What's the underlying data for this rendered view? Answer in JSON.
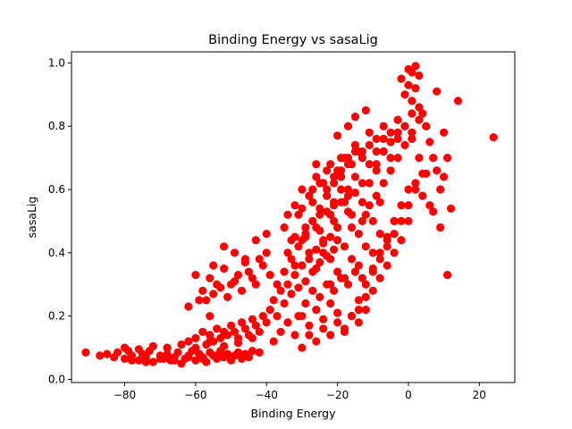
{
  "chart_data": {
    "type": "scatter",
    "title": "Binding Energy vs sasaLig",
    "xlabel": "Binding Energy",
    "ylabel": "sasaLig",
    "xlim": [
      -95,
      30
    ],
    "ylim": [
      -0.01,
      1.035
    ],
    "xticks": [
      -80,
      -60,
      -40,
      -20,
      0,
      20
    ],
    "yticks": [
      0.0,
      0.2,
      0.4,
      0.6,
      0.8,
      1.0
    ],
    "xtick_labels": [
      "−80",
      "−60",
      "−40",
      "−20",
      "0",
      "20"
    ],
    "ytick_labels": [
      "0.0",
      "0.2",
      "0.4",
      "0.6",
      "0.8",
      "1.0"
    ],
    "grid": false,
    "marker_color": "#ff0000",
    "series": [
      {
        "x": [
          -91,
          -87,
          -85,
          -83,
          -82,
          -80,
          -79,
          -78,
          -76,
          -75,
          -74,
          -73,
          -72,
          -70,
          -69,
          -68,
          -67,
          -66,
          -65,
          -64,
          -63,
          -62,
          -61,
          -60,
          -59,
          -58,
          -57,
          -56,
          -55,
          -54,
          -53,
          -52,
          -51,
          -50,
          -49,
          -48,
          -47,
          -46,
          -45,
          -44,
          -80,
          -76,
          -72,
          -68,
          -64,
          -60,
          -56,
          -52,
          -48,
          -44,
          -78,
          -74,
          -70,
          -66,
          -62,
          -58,
          -54,
          -50,
          -46,
          -42,
          -62,
          -60,
          -58,
          -57,
          -56,
          -55,
          -54,
          -53,
          -52,
          -51,
          -50,
          -49,
          -48,
          -47,
          -46,
          -45,
          -44,
          -43,
          -42,
          -41,
          -58,
          -56,
          -54,
          -52,
          -50,
          -48,
          -46,
          -44,
          -42,
          -40,
          -57,
          -55,
          -53,
          -51,
          -49,
          -47,
          -45,
          -43,
          -41,
          -39,
          -62,
          -60,
          -55,
          -52,
          -49,
          -46,
          -43,
          -40,
          -59,
          -56,
          -40,
          -39,
          -38,
          -37,
          -36,
          -35,
          -34,
          -33,
          -32,
          -31,
          -30,
          -29,
          -28,
          -27,
          -26,
          -25,
          -24,
          -23,
          -22,
          -21,
          -38,
          -36,
          -34,
          -32,
          -30,
          -28,
          -26,
          -24,
          -22,
          -20,
          -37,
          -35,
          -33,
          -31,
          -29,
          -27,
          -25,
          -23,
          -21,
          -19,
          -35,
          -33,
          -31,
          -29,
          -27,
          -25,
          -23,
          -21,
          -19,
          -17,
          -34,
          -32,
          -30,
          -28,
          -26,
          -24,
          -22,
          -20,
          -18,
          -16,
          -32,
          -30,
          -28,
          -26,
          -24,
          -22,
          -20,
          -18,
          -16,
          -14,
          -31,
          -29,
          -27,
          -25,
          -23,
          -21,
          -19,
          -17,
          -15,
          -13,
          -30,
          -28,
          -26,
          -24,
          -22,
          -20,
          -18,
          -16,
          -14,
          -12,
          -29,
          -27,
          -25,
          -23,
          -21,
          -19,
          -17,
          -15,
          -13,
          -11,
          -26,
          -24,
          -22,
          -20,
          -18,
          -16,
          -14,
          -12,
          -10,
          -8,
          -25,
          -23,
          -21,
          -19,
          -17,
          -15,
          -13,
          -11,
          -9,
          -7,
          -22,
          -20,
          -18,
          -16,
          -14,
          -12,
          -10,
          -8,
          -6,
          -4,
          -21,
          -19,
          -17,
          -15,
          -13,
          -11,
          -9,
          -7,
          -5,
          -3,
          -18,
          -16,
          -14,
          -12,
          -10,
          -8,
          -6,
          -4,
          -2,
          0,
          -17,
          -15,
          -13,
          -11,
          -9,
          -7,
          -5,
          -3,
          -1,
          1,
          -14,
          -12,
          -10,
          -8,
          -6,
          -4,
          -2,
          0,
          2,
          4,
          -13,
          -11,
          -9,
          -7,
          -5,
          -3,
          -1,
          1,
          3,
          5,
          -10,
          -8,
          -6,
          -4,
          -2,
          0,
          2,
          4,
          6,
          -9,
          -7,
          -5,
          -3,
          -1,
          1,
          3,
          5,
          -2,
          0,
          1,
          2,
          3,
          -1,
          0,
          1,
          2,
          3,
          4,
          5,
          6,
          7,
          8,
          9,
          -32,
          -34,
          -30,
          -26,
          -27,
          -24,
          -20,
          -15,
          -17,
          -12,
          11,
          12,
          14,
          24,
          10,
          8,
          10,
          11,
          9,
          7
        ],
        "y": [
          0.085,
          0.075,
          0.08,
          0.07,
          0.085,
          0.065,
          0.09,
          0.075,
          0.06,
          0.08,
          0.07,
          0.09,
          0.055,
          0.075,
          0.065,
          0.08,
          0.06,
          0.07,
          0.085,
          0.05,
          0.065,
          0.075,
          0.09,
          0.06,
          0.08,
          0.07,
          0.055,
          0.085,
          0.075,
          0.065,
          0.09,
          0.07,
          0.08,
          0.06,
          0.075,
          0.085,
          0.065,
          0.08,
          0.07,
          0.09,
          0.1,
          0.095,
          0.105,
          0.1,
          0.11,
          0.1,
          0.12,
          0.105,
          0.115,
          0.13,
          0.06,
          0.055,
          0.065,
          0.06,
          0.07,
          0.065,
          0.075,
          0.07,
          0.08,
          0.085,
          0.12,
          0.13,
          0.15,
          0.11,
          0.14,
          0.12,
          0.16,
          0.13,
          0.15,
          0.14,
          0.17,
          0.15,
          0.13,
          0.18,
          0.16,
          0.14,
          0.19,
          0.17,
          0.15,
          0.2,
          0.28,
          0.32,
          0.3,
          0.35,
          0.3,
          0.33,
          0.37,
          0.32,
          0.38,
          0.4,
          0.25,
          0.27,
          0.29,
          0.26,
          0.31,
          0.28,
          0.34,
          0.3,
          0.36,
          0.33,
          0.23,
          0.33,
          0.36,
          0.42,
          0.4,
          0.38,
          0.44,
          0.46,
          0.25,
          0.2,
          0.18,
          0.22,
          0.25,
          0.2,
          0.28,
          0.24,
          0.3,
          0.27,
          0.33,
          0.29,
          0.36,
          0.31,
          0.38,
          0.34,
          0.41,
          0.37,
          0.43,
          0.39,
          0.45,
          0.41,
          0.12,
          0.15,
          0.18,
          0.14,
          0.2,
          0.17,
          0.22,
          0.19,
          0.24,
          0.21,
          0.3,
          0.34,
          0.38,
          0.42,
          0.46,
          0.5,
          0.54,
          0.58,
          0.62,
          0.66,
          0.48,
          0.44,
          0.52,
          0.48,
          0.56,
          0.52,
          0.6,
          0.56,
          0.64,
          0.6,
          0.4,
          0.36,
          0.44,
          0.4,
          0.48,
          0.44,
          0.52,
          0.48,
          0.56,
          0.52,
          0.55,
          0.6,
          0.58,
          0.64,
          0.62,
          0.68,
          0.66,
          0.7,
          0.68,
          0.72,
          0.2,
          0.24,
          0.28,
          0.26,
          0.3,
          0.28,
          0.32,
          0.3,
          0.34,
          0.32,
          0.1,
          0.14,
          0.12,
          0.16,
          0.14,
          0.18,
          0.16,
          0.2,
          0.18,
          0.22,
          0.45,
          0.5,
          0.47,
          0.53,
          0.5,
          0.56,
          0.53,
          0.59,
          0.56,
          0.62,
          0.35,
          0.4,
          0.38,
          0.44,
          0.42,
          0.48,
          0.46,
          0.52,
          0.5,
          0.56,
          0.62,
          0.66,
          0.64,
          0.7,
          0.68,
          0.72,
          0.7,
          0.74,
          0.72,
          0.76,
          0.3,
          0.34,
          0.32,
          0.38,
          0.36,
          0.42,
          0.4,
          0.46,
          0.44,
          0.5,
          0.55,
          0.6,
          0.58,
          0.64,
          0.62,
          0.68,
          0.66,
          0.72,
          0.7,
          0.76,
          0.15,
          0.2,
          0.22,
          0.26,
          0.28,
          0.32,
          0.36,
          0.4,
          0.44,
          0.5,
          0.7,
          0.74,
          0.72,
          0.78,
          0.76,
          0.8,
          0.78,
          0.82,
          0.8,
          0.84,
          0.25,
          0.3,
          0.34,
          0.38,
          0.42,
          0.46,
          0.5,
          0.55,
          0.6,
          0.65,
          0.5,
          0.55,
          0.58,
          0.62,
          0.66,
          0.7,
          0.74,
          0.78,
          0.82,
          0.8,
          0.35,
          0.4,
          0.45,
          0.5,
          0.55,
          0.6,
          0.62,
          0.58,
          0.55,
          0.68,
          0.72,
          0.75,
          0.78,
          0.8,
          0.76,
          0.7,
          0.65,
          0.95,
          0.98,
          0.97,
          0.99,
          0.96,
          0.9,
          0.93,
          0.88,
          0.92,
          0.86,
          0.84,
          0.8,
          0.75,
          0.7,
          0.66,
          0.6,
          0.45,
          0.52,
          0.54,
          0.68,
          0.6,
          0.62,
          0.77,
          0.83,
          0.8,
          0.85,
          0.33,
          0.54,
          0.88,
          0.765,
          0.78,
          0.91,
          0.64,
          0.7,
          0.48,
          0.53
        ]
      }
    ]
  }
}
